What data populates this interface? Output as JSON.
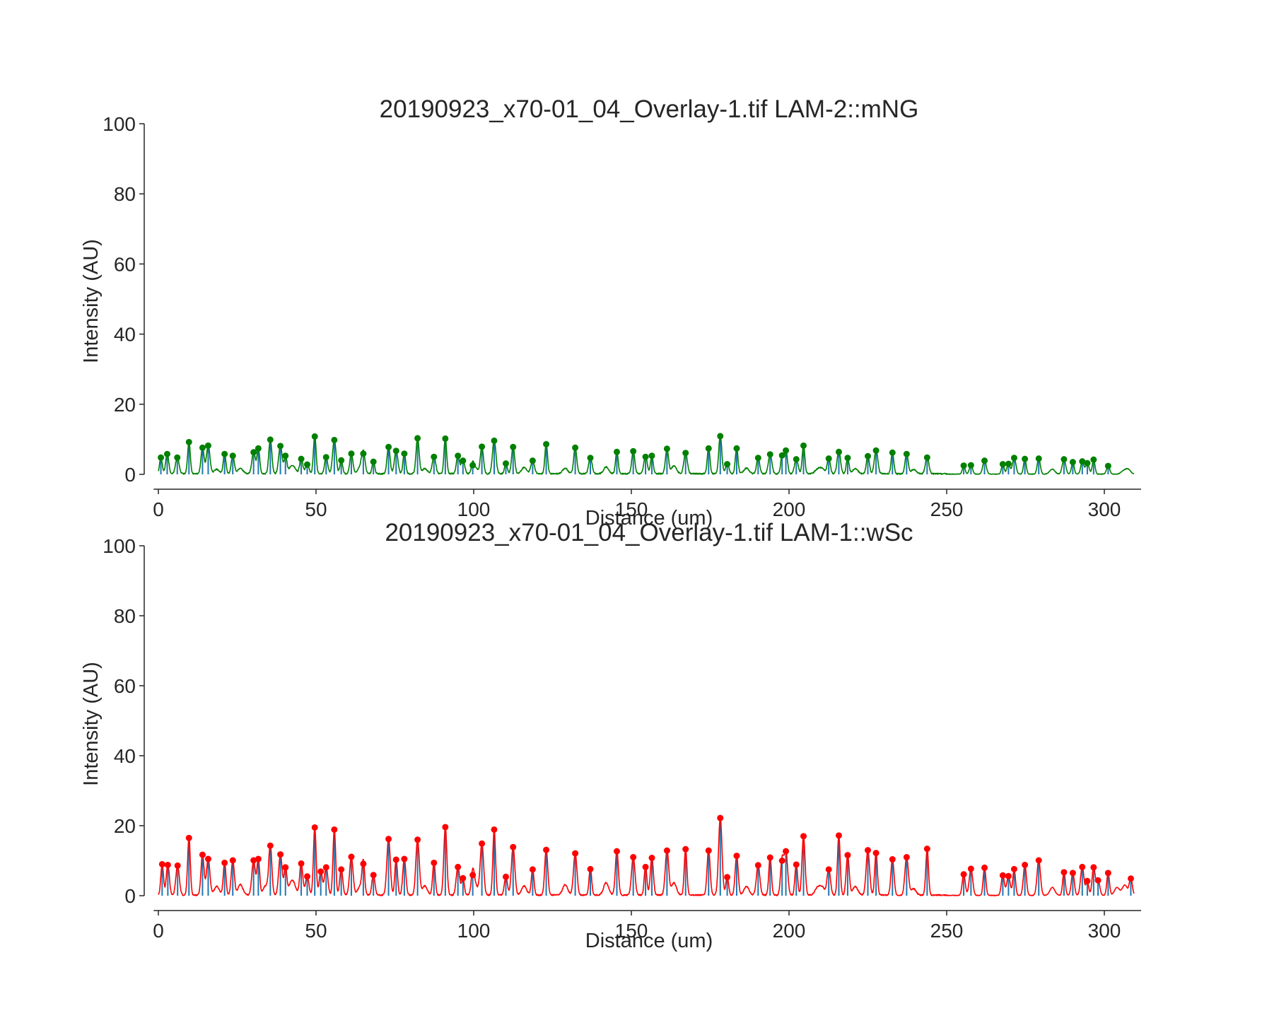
{
  "chart_data": [
    {
      "type": "line",
      "title": "20190923_x70-01_04_Overlay-1.tif LAM-2::mNG",
      "xlabel": "Distance (um)",
      "ylabel": "Intensity (AU)",
      "xlim": [
        -1.5,
        311
      ],
      "ylim": [
        0,
        100
      ],
      "xticks": [
        0,
        50,
        100,
        150,
        200,
        250,
        300
      ],
      "yticks": [
        0,
        20,
        40,
        60,
        80,
        100
      ],
      "grid": false,
      "series": [
        {
          "role": "profile",
          "color": "#008000",
          "peaks_x": [
            0.8,
            2.8,
            6.0,
            9.7,
            14.0,
            15.8,
            21.0,
            23.6,
            30.2,
            31.7,
            35.5,
            38.7,
            40.3,
            45.3,
            47.2,
            49.6,
            53.2,
            55.8,
            58.0,
            61.2,
            65.0,
            68.2,
            73.0,
            75.4,
            78.0,
            82.2,
            87.4,
            91.0,
            95.0,
            96.6,
            99.7,
            102.6,
            106.5,
            110.2,
            112.5,
            118.7,
            123.0,
            132.2,
            137.0,
            145.4,
            150.6,
            154.5,
            156.5,
            161.3,
            167.2,
            174.5,
            178.2,
            180.4,
            183.4,
            190.2,
            194.0,
            197.8,
            199.0,
            202.3,
            204.6,
            212.6,
            215.8,
            218.6,
            225.0,
            227.6,
            232.8,
            237.3,
            243.8,
            255.4,
            257.7,
            262.0,
            267.8,
            269.6,
            271.4,
            274.8,
            279.2,
            287.2,
            290.0,
            293.0,
            294.6,
            296.6,
            301.2
          ],
          "peaks_y": [
            4.8,
            5.8,
            4.8,
            9.2,
            7.6,
            8.2,
            5.8,
            5.3,
            6.3,
            7.4,
            9.9,
            8.1,
            5.3,
            4.4,
            2.8,
            10.8,
            4.9,
            9.8,
            4.0,
            5.9,
            5.9,
            3.6,
            7.8,
            6.7,
            5.9,
            10.3,
            5.0,
            10.2,
            5.3,
            3.9,
            2.6,
            7.9,
            9.6,
            3.1,
            7.8,
            3.9,
            8.6,
            7.6,
            4.7,
            6.4,
            6.6,
            5.0,
            5.3,
            7.3,
            6.1,
            7.4,
            10.9,
            2.9,
            7.4,
            4.7,
            5.7,
            5.4,
            6.8,
            4.3,
            8.2,
            4.5,
            6.4,
            4.7,
            5.2,
            6.8,
            6.2,
            5.8,
            4.8,
            2.5,
            2.6,
            3.9,
            2.9,
            3.0,
            4.7,
            4.4,
            4.5,
            4.3,
            3.5,
            3.7,
            3.2,
            4.2,
            2.4
          ],
          "minor_peaks_x": [
            18.5,
            26.0,
            42.0,
            43.0,
            64.0,
            84.5,
            100.5,
            116.0,
            129.0,
            142.0,
            163.5,
            186.5,
            209.0,
            210.5,
            221.0,
            239.5,
            283.5,
            306.0,
            307.5
          ],
          "minor_peaks_y": [
            1.3,
            1.6,
            1.5,
            1.4,
            1.8,
            1.5,
            1.7,
            1.8,
            1.6,
            1.9,
            2.3,
            1.6,
            1.2,
            1.5,
            1.5,
            1.2,
            1.4,
            0.8,
            1.4
          ]
        },
        {
          "role": "peak-markers",
          "color": "#008000",
          "marker": "circle"
        },
        {
          "role": "peak-stems",
          "color": "#1f77b4"
        }
      ]
    },
    {
      "type": "line",
      "title": "20190923_x70-01_04_Overlay-1.tif LAM-1::wSc",
      "xlabel": "Distance (um)",
      "ylabel": "Intensity (AU)",
      "xlim": [
        -1.5,
        311
      ],
      "ylim": [
        0,
        100
      ],
      "xticks": [
        0,
        50,
        100,
        150,
        200,
        250,
        300
      ],
      "yticks": [
        0,
        20,
        40,
        60,
        80,
        100
      ],
      "grid": false,
      "series": [
        {
          "role": "profile",
          "color": "#ff0000",
          "peaks_x": [
            1.2,
            3.0,
            6.1,
            9.7,
            14.0,
            15.8,
            21.0,
            23.6,
            30.2,
            31.7,
            35.5,
            38.7,
            40.3,
            45.3,
            47.2,
            49.6,
            51.5,
            53.2,
            55.8,
            58.0,
            61.2,
            65.0,
            68.2,
            73.0,
            75.4,
            78.0,
            82.2,
            87.4,
            91.0,
            95.0,
            96.6,
            99.7,
            102.6,
            106.5,
            110.2,
            112.5,
            118.7,
            123.0,
            132.2,
            137.0,
            145.4,
            150.6,
            154.5,
            156.5,
            161.3,
            167.2,
            174.5,
            178.2,
            180.4,
            183.4,
            190.2,
            194.0,
            197.8,
            199.0,
            202.3,
            204.6,
            212.6,
            215.8,
            218.6,
            225.0,
            227.6,
            232.8,
            237.3,
            243.8,
            255.4,
            257.7,
            262.0,
            267.8,
            269.6,
            271.4,
            274.8,
            279.2,
            287.2,
            290.0,
            293.0,
            294.6,
            296.6,
            298.0,
            301.2,
            308.4
          ],
          "peaks_y": [
            9.0,
            8.8,
            8.6,
            16.5,
            11.7,
            10.5,
            9.4,
            10.1,
            10.1,
            10.5,
            14.3,
            11.8,
            8.1,
            9.2,
            5.5,
            19.5,
            6.9,
            8.1,
            18.9,
            7.5,
            11.1,
            9.1,
            5.9,
            16.2,
            10.3,
            10.5,
            16.0,
            9.4,
            19.6,
            8.2,
            5.0,
            5.9,
            14.9,
            18.9,
            5.4,
            13.9,
            7.5,
            13.1,
            12.1,
            7.6,
            12.7,
            11.0,
            8.2,
            10.8,
            12.9,
            13.3,
            12.9,
            22.2,
            5.3,
            11.4,
            8.7,
            10.9,
            10.0,
            12.7,
            8.9,
            17.0,
            7.5,
            17.2,
            11.6,
            13.0,
            12.2,
            10.4,
            11.0,
            13.4,
            6.1,
            7.7,
            8.0,
            5.8,
            5.6,
            7.6,
            8.8,
            10.1,
            6.7,
            6.5,
            8.2,
            4.2,
            8.1,
            4.4,
            6.5,
            4.9
          ],
          "minor_peaks_x": [
            18.5,
            26.0,
            34.0,
            42.0,
            43.0,
            64.0,
            84.5,
            100.5,
            116.0,
            129.0,
            142.0,
            163.5,
            186.5,
            209.0,
            210.5,
            221.0,
            239.5,
            283.5,
            304.0,
            306.5
          ],
          "minor_peaks_y": [
            2.5,
            3.0,
            2.6,
            2.7,
            2.4,
            2.5,
            2.6,
            2.8,
            2.6,
            3.0,
            3.6,
            3.5,
            2.5,
            2.0,
            2.2,
            2.5,
            1.8,
            2.3,
            2.3,
            3.0
          ]
        },
        {
          "role": "peak-markers",
          "color": "#ff0000",
          "marker": "circle"
        },
        {
          "role": "peak-stems",
          "color": "#1f77b4"
        }
      ]
    }
  ]
}
